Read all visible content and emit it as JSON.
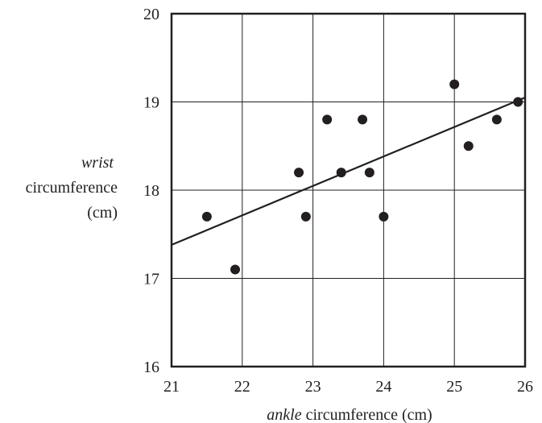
{
  "chart_data": {
    "type": "scatter",
    "title": "",
    "xlabel": {
      "italic": "ankle",
      "rest": " circumference (cm)"
    },
    "ylabel": {
      "line1": "wrist",
      "line2": "circumference",
      "line3": "(cm)"
    },
    "xlim": [
      21,
      26
    ],
    "ylim": [
      16,
      20
    ],
    "xticks": [
      "21",
      "22",
      "23",
      "24",
      "25",
      "26"
    ],
    "yticks": [
      "16",
      "17",
      "18",
      "19",
      "20"
    ],
    "grid": true,
    "points": [
      [
        21.5,
        17.7
      ],
      [
        21.9,
        17.1
      ],
      [
        22.8,
        18.2
      ],
      [
        22.9,
        17.7
      ],
      [
        23.2,
        18.8
      ],
      [
        23.4,
        18.2
      ],
      [
        23.7,
        18.8
      ],
      [
        23.8,
        18.2
      ],
      [
        24.0,
        17.7
      ],
      [
        25.0,
        19.2
      ],
      [
        25.2,
        18.5
      ],
      [
        25.6,
        18.8
      ],
      [
        25.9,
        19.0
      ]
    ],
    "trend_line": {
      "x": [
        21,
        26
      ],
      "y": [
        17.38,
        19.05
      ]
    },
    "colors": {
      "ink": "#231f20"
    }
  }
}
